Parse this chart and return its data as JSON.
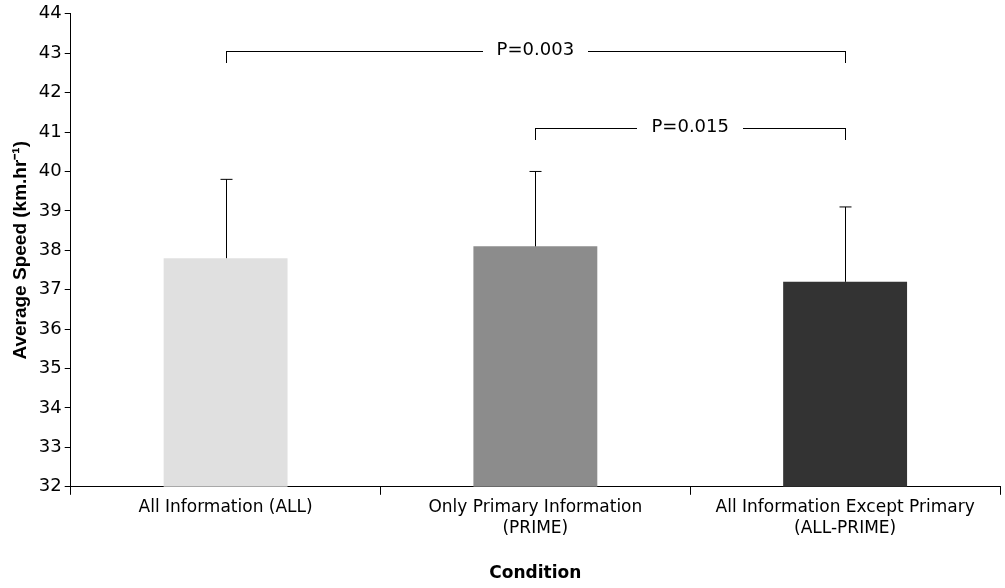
{
  "chart_data": {
    "type": "bar",
    "xlabel": "Condition",
    "ylabel": "Average Speed (km.hr⁻¹)",
    "categories": [
      "All Information (ALL)",
      "Only Primary Information (PRIME)",
      "All Information Except Primary (ALL-PRIME)"
    ],
    "values": [
      37.8,
      38.1,
      37.2
    ],
    "colors": [
      "#e0e0e0",
      "#8c8c8c",
      "#333333"
    ],
    "errors": [
      [
        37.8,
        39.8
      ],
      [
        38.1,
        40.0
      ],
      [
        37.2,
        39.1
      ]
    ],
    "ylim": [
      32,
      44
    ],
    "yticks": [
      32,
      33,
      34,
      35,
      36,
      37,
      38,
      39,
      40,
      41,
      42,
      43,
      44
    ],
    "annotations": [
      "P=0.003",
      "P=0.015"
    ],
    "grid": false,
    "legend": false
  }
}
